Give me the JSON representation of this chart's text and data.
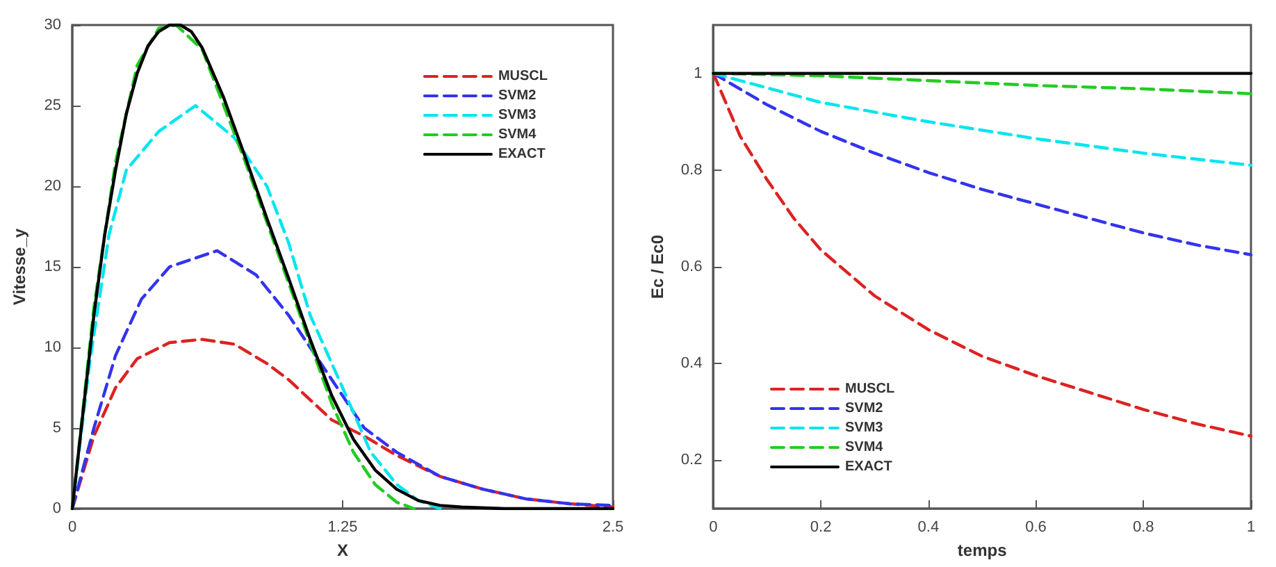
{
  "chart_data": [
    {
      "type": "line",
      "xlabel": "X",
      "ylabel": "Vitesse_y",
      "xlim": [
        0,
        2.5
      ],
      "xticks": [
        0,
        1.25,
        2.5
      ],
      "ylim": [
        0,
        30
      ],
      "yticks": [
        0,
        5,
        10,
        15,
        20,
        25,
        30
      ],
      "grid": false,
      "legend": "top right",
      "marker": "none",
      "series": [
        {
          "name": "MUSCL",
          "color": "#dd2222",
          "line_style": "dashed",
          "x": [
            0,
            0.1,
            0.2,
            0.3,
            0.45,
            0.6,
            0.75,
            0.9,
            1.0,
            1.2,
            1.35,
            1.5,
            1.7,
            1.9,
            2.1,
            2.3,
            2.5
          ],
          "values": [
            0,
            4.5,
            7.5,
            9.3,
            10.3,
            10.5,
            10.2,
            9,
            8,
            5.5,
            4.5,
            3.3,
            2,
            1.2,
            0.6,
            0.3,
            0.1
          ]
        },
        {
          "name": "SVM2",
          "color": "#3333ee",
          "line_style": "dashed",
          "x": [
            0,
            0.1,
            0.2,
            0.32,
            0.45,
            0.67,
            0.85,
            1.0,
            1.1,
            1.25,
            1.35,
            1.5,
            1.7,
            1.9,
            2.1,
            2.3,
            2.5
          ],
          "values": [
            0,
            5,
            9.5,
            13,
            15,
            16,
            14.5,
            12,
            10,
            7,
            5,
            3.5,
            2,
            1.2,
            0.6,
            0.3,
            0.2
          ]
        },
        {
          "name": "SVM3",
          "color": "#00e5ee",
          "line_style": "dashed",
          "x": [
            0,
            0.08,
            0.17,
            0.25,
            0.4,
            0.57,
            0.75,
            0.9,
            1.0,
            1.1,
            1.25,
            1.38,
            1.5,
            1.6,
            1.7
          ],
          "values": [
            0,
            9,
            17,
            21,
            23.4,
            25,
            23,
            20,
            16.5,
            12,
            7.5,
            3.5,
            1.5,
            0.5,
            0
          ]
        },
        {
          "name": "SVM4",
          "color": "#22cc22",
          "line_style": "dashed",
          "x": [
            0,
            0.1,
            0.2,
            0.3,
            0.4,
            0.48,
            0.6,
            0.8,
            1.0,
            1.2,
            1.3,
            1.4,
            1.5,
            1.58
          ],
          "values": [
            0,
            12.5,
            21.5,
            27.5,
            29.8,
            30,
            28.5,
            21.5,
            14,
            6.5,
            3.5,
            1.5,
            0.4,
            0
          ]
        },
        {
          "name": "EXACT",
          "color": "#000000",
          "line_style": "solid",
          "x": [
            0,
            0.05,
            0.1,
            0.15,
            0.2,
            0.25,
            0.3,
            0.35,
            0.4,
            0.45,
            0.5,
            0.55,
            0.6,
            0.7,
            0.8,
            0.9,
            1.0,
            1.1,
            1.2,
            1.3,
            1.4,
            1.5,
            1.6,
            1.7,
            1.8,
            2.0,
            2.5
          ],
          "values": [
            0,
            6,
            12,
            17,
            21,
            24.5,
            27,
            28.7,
            29.6,
            30,
            30,
            29.6,
            28.6,
            25.5,
            21.8,
            18,
            14.3,
            10.5,
            7,
            4.3,
            2.4,
            1.2,
            0.5,
            0.2,
            0.1,
            0,
            0
          ]
        }
      ]
    },
    {
      "type": "line",
      "xlabel": "temps",
      "ylabel": "Ec / Ec0",
      "xlim": [
        0,
        1
      ],
      "xticks": [
        0,
        0.2,
        0.4,
        0.6,
        0.8,
        1
      ],
      "ylim": [
        0.1,
        1.1
      ],
      "yticks": [
        0.2,
        0.4,
        0.6,
        0.8,
        1
      ],
      "grid": false,
      "legend": "bottom left",
      "marker": "none",
      "series": [
        {
          "name": "MUSCL",
          "color": "#dd2222",
          "line_style": "dashed",
          "x": [
            0,
            0.05,
            0.1,
            0.15,
            0.2,
            0.3,
            0.4,
            0.5,
            0.6,
            0.7,
            0.8,
            0.9,
            1
          ],
          "values": [
            1,
            0.87,
            0.78,
            0.7,
            0.635,
            0.54,
            0.47,
            0.415,
            0.375,
            0.34,
            0.305,
            0.275,
            0.25
          ]
        },
        {
          "name": "SVM2",
          "color": "#3333ee",
          "line_style": "dashed",
          "x": [
            0,
            0.1,
            0.2,
            0.3,
            0.4,
            0.5,
            0.6,
            0.7,
            0.8,
            0.9,
            1
          ],
          "values": [
            1,
            0.935,
            0.88,
            0.835,
            0.795,
            0.76,
            0.73,
            0.7,
            0.67,
            0.645,
            0.625
          ]
        },
        {
          "name": "SVM3",
          "color": "#00e5ee",
          "line_style": "dashed",
          "x": [
            0,
            0.2,
            0.4,
            0.6,
            0.8,
            1
          ],
          "values": [
            1,
            0.94,
            0.9,
            0.865,
            0.835,
            0.81
          ]
        },
        {
          "name": "SVM4",
          "color": "#22cc22",
          "line_style": "dashed",
          "x": [
            0,
            0.2,
            0.4,
            0.6,
            0.8,
            1
          ],
          "values": [
            1,
            0.995,
            0.985,
            0.975,
            0.968,
            0.958
          ]
        },
        {
          "name": "EXACT",
          "color": "#000000",
          "line_style": "solid",
          "x": [
            0,
            1
          ],
          "values": [
            1,
            1
          ]
        }
      ]
    }
  ]
}
